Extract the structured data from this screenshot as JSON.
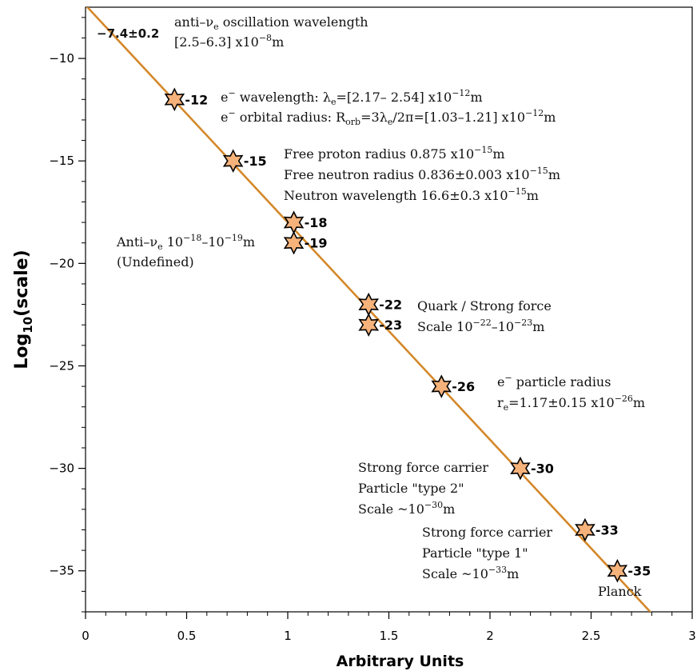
{
  "chart_data": {
    "type": "scatter",
    "xlabel": "Arbitrary Units",
    "ylabel": "Log10(scale)",
    "ylabel_main": "Log",
    "ylabel_sub": "10",
    "ylabel_rest": "(scale)",
    "xlim": [
      0,
      3
    ],
    "ylim": [
      -37,
      -7.5
    ],
    "xticks": [
      "0",
      "0.5",
      "1",
      "1.5",
      "2",
      "2.5",
      "3"
    ],
    "yticks": [
      "−10",
      "−15",
      "−20",
      "−25",
      "−30",
      "−35"
    ],
    "grid": false,
    "fit_line": {
      "color": "#d4882a",
      "intercept": -7.4,
      "slope": -10.6
    },
    "intercept_label": "−7.4±0.2",
    "points": [
      {
        "x": 0.44,
        "y": -12,
        "label": "-12"
      },
      {
        "x": 0.73,
        "y": -15,
        "label": "-15"
      },
      {
        "x": 1.03,
        "y": -18,
        "label": "-18"
      },
      {
        "x": 1.03,
        "y": -19,
        "label": "-19"
      },
      {
        "x": 1.4,
        "y": -22,
        "label": "-22"
      },
      {
        "x": 1.4,
        "y": -23,
        "label": "-23"
      },
      {
        "x": 1.76,
        "y": -26,
        "label": "-26"
      },
      {
        "x": 2.15,
        "y": -30,
        "label": "-30"
      },
      {
        "x": 2.47,
        "y": -33,
        "label": "-33"
      },
      {
        "x": 2.63,
        "y": -35,
        "label": "-35"
      }
    ],
    "marker_color": "#f5b27a",
    "annotations": {
      "antinu_wavelength": [
        "anti–ν",
        "e",
        " oscillation wavelength"
      ],
      "antinu_range": [
        "[2.5–6.3] x10",
        "−8",
        "m"
      ],
      "e_wavelength": [
        "e",
        "−",
        " wavelength: λ",
        "e",
        "=[2.17– 2.54] x10",
        "−12",
        "m"
      ],
      "e_orbital": [
        "e",
        "−",
        " orbital radius: R",
        "orb",
        "=3λ",
        "e",
        "/2π=[1.03–1.21] x10",
        "−12",
        "m"
      ],
      "proton_radius": [
        "Free proton radius 0.875 x10",
        "−15",
        "m"
      ],
      "neutron_radius": [
        "Free neutron radius 0.836±0.003 x10",
        "−15",
        "m"
      ],
      "neutron_wavelength": [
        "Neutron wavelength 16.6±0.3 x10",
        "−15",
        "m"
      ],
      "antinu_scale": [
        "Anti–ν",
        "e",
        " 10",
        "−18",
        "–10",
        "−19",
        "m"
      ],
      "undefined": "(Undefined)",
      "quark_title": "Quark / Strong force",
      "quark_scale": [
        "Scale 10",
        "−22",
        "–10",
        "−23",
        "m"
      ],
      "e_radius_title": [
        "e",
        "−",
        " particle radius"
      ],
      "e_radius_value": [
        "r",
        "e",
        "=1.17±0.15 x10",
        "−26",
        "m"
      ],
      "carrier2_title": "Strong force carrier",
      "carrier2_type": "Particle \"type 2\"",
      "carrier2_scale": [
        "Scale ~10",
        "−30",
        "m"
      ],
      "carrier1_title": "Strong force carrier",
      "carrier1_type": "Particle \"type 1\"",
      "carrier1_scale": [
        "Scale ~10",
        "−33",
        "m"
      ],
      "planck": "Planck"
    }
  }
}
